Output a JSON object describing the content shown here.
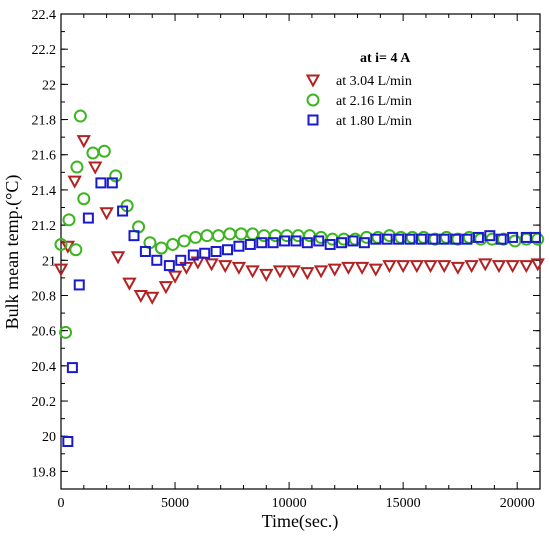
{
  "chart_data": {
    "type": "scatter",
    "xlabel": "Time(sec.)",
    "ylabel": "Bulk mean temp.(°C)",
    "xlim": [
      0,
      21000
    ],
    "ylim": [
      19.7,
      22.4
    ],
    "x_ticks": [
      0,
      5000,
      10000,
      15000,
      20000
    ],
    "y_ticks": [
      19.8,
      20,
      20.2,
      20.4,
      20.6,
      20.8,
      21,
      21.2,
      21.4,
      21.6,
      21.8,
      22,
      22.2,
      22.4
    ],
    "grid": false,
    "legend": {
      "title": "at i= 4 A",
      "placement": "top-right"
    },
    "series": [
      {
        "name": "at 3.04 L/min",
        "marker": "triangle-down",
        "color": "#b22222",
        "points": [
          [
            0,
            20.95
          ],
          [
            300,
            21.08
          ],
          [
            600,
            21.45
          ],
          [
            1000,
            21.68
          ],
          [
            1500,
            21.53
          ],
          [
            2000,
            21.27
          ],
          [
            2500,
            21.02
          ],
          [
            3000,
            20.87
          ],
          [
            3500,
            20.8
          ],
          [
            4000,
            20.79
          ],
          [
            4600,
            20.85
          ],
          [
            5000,
            20.91
          ],
          [
            5500,
            20.96
          ],
          [
            6000,
            20.99
          ],
          [
            6600,
            20.98
          ],
          [
            7200,
            20.97
          ],
          [
            7800,
            20.96
          ],
          [
            8400,
            20.94
          ],
          [
            9000,
            20.92
          ],
          [
            9600,
            20.94
          ],
          [
            10200,
            20.94
          ],
          [
            10800,
            20.93
          ],
          [
            11400,
            20.94
          ],
          [
            12000,
            20.95
          ],
          [
            12600,
            20.96
          ],
          [
            13200,
            20.96
          ],
          [
            13800,
            20.95
          ],
          [
            14400,
            20.97
          ],
          [
            15000,
            20.97
          ],
          [
            15600,
            20.97
          ],
          [
            16200,
            20.97
          ],
          [
            16800,
            20.97
          ],
          [
            17400,
            20.96
          ],
          [
            18000,
            20.97
          ],
          [
            18600,
            20.98
          ],
          [
            19200,
            20.97
          ],
          [
            19800,
            20.97
          ],
          [
            20400,
            20.97
          ],
          [
            20900,
            20.98
          ]
        ]
      },
      {
        "name": "at 2.16 L/min",
        "marker": "circle",
        "color": "#3cb521",
        "points": [
          [
            0,
            21.09
          ],
          [
            200,
            20.59
          ],
          [
            350,
            21.23
          ],
          [
            650,
            21.06
          ],
          [
            700,
            21.53
          ],
          [
            850,
            21.82
          ],
          [
            1000,
            21.35
          ],
          [
            1400,
            21.61
          ],
          [
            1900,
            21.62
          ],
          [
            2400,
            21.48
          ],
          [
            2900,
            21.31
          ],
          [
            3400,
            21.19
          ],
          [
            3900,
            21.1
          ],
          [
            4400,
            21.07
          ],
          [
            4900,
            21.09
          ],
          [
            5400,
            21.11
          ],
          [
            5900,
            21.13
          ],
          [
            6400,
            21.14
          ],
          [
            6900,
            21.14
          ],
          [
            7400,
            21.15
          ],
          [
            7900,
            21.15
          ],
          [
            8400,
            21.15
          ],
          [
            8900,
            21.14
          ],
          [
            9400,
            21.14
          ],
          [
            9900,
            21.14
          ],
          [
            10400,
            21.14
          ],
          [
            10900,
            21.14
          ],
          [
            11400,
            21.13
          ],
          [
            11900,
            21.12
          ],
          [
            12400,
            21.12
          ],
          [
            12900,
            21.12
          ],
          [
            13400,
            21.13
          ],
          [
            13900,
            21.13
          ],
          [
            14400,
            21.14
          ],
          [
            14900,
            21.13
          ],
          [
            15400,
            21.13
          ],
          [
            15900,
            21.13
          ],
          [
            16400,
            21.12
          ],
          [
            16900,
            21.13
          ],
          [
            17400,
            21.12
          ],
          [
            17900,
            21.13
          ],
          [
            18400,
            21.12
          ],
          [
            18900,
            21.12
          ],
          [
            19400,
            21.12
          ],
          [
            19900,
            21.11
          ],
          [
            20400,
            21.12
          ],
          [
            20900,
            21.12
          ]
        ]
      },
      {
        "name": "at 1.80 L/min",
        "marker": "square",
        "color": "#1a1acd",
        "points": [
          [
            300,
            19.97
          ],
          [
            500,
            20.39
          ],
          [
            800,
            20.86
          ],
          [
            1200,
            21.24
          ],
          [
            1750,
            21.44
          ],
          [
            2250,
            21.44
          ],
          [
            2700,
            21.28
          ],
          [
            3200,
            21.14
          ],
          [
            3700,
            21.05
          ],
          [
            4200,
            21.0
          ],
          [
            4750,
            20.97
          ],
          [
            5250,
            21.0
          ],
          [
            5800,
            21.03
          ],
          [
            6300,
            21.04
          ],
          [
            6800,
            21.05
          ],
          [
            7300,
            21.06
          ],
          [
            7800,
            21.08
          ],
          [
            8300,
            21.09
          ],
          [
            8800,
            21.1
          ],
          [
            9300,
            21.1
          ],
          [
            9800,
            21.11
          ],
          [
            10300,
            21.11
          ],
          [
            10800,
            21.1
          ],
          [
            11300,
            21.11
          ],
          [
            11800,
            21.09
          ],
          [
            12300,
            21.1
          ],
          [
            12800,
            21.11
          ],
          [
            13300,
            21.1
          ],
          [
            13800,
            21.12
          ],
          [
            14300,
            21.12
          ],
          [
            14800,
            21.12
          ],
          [
            15300,
            21.12
          ],
          [
            15800,
            21.12
          ],
          [
            16300,
            21.12
          ],
          [
            16800,
            21.12
          ],
          [
            17300,
            21.12
          ],
          [
            17800,
            21.12
          ],
          [
            18300,
            21.13
          ],
          [
            18800,
            21.14
          ],
          [
            19300,
            21.12
          ],
          [
            19800,
            21.13
          ],
          [
            20400,
            21.13
          ],
          [
            20800,
            21.13
          ]
        ]
      }
    ]
  }
}
